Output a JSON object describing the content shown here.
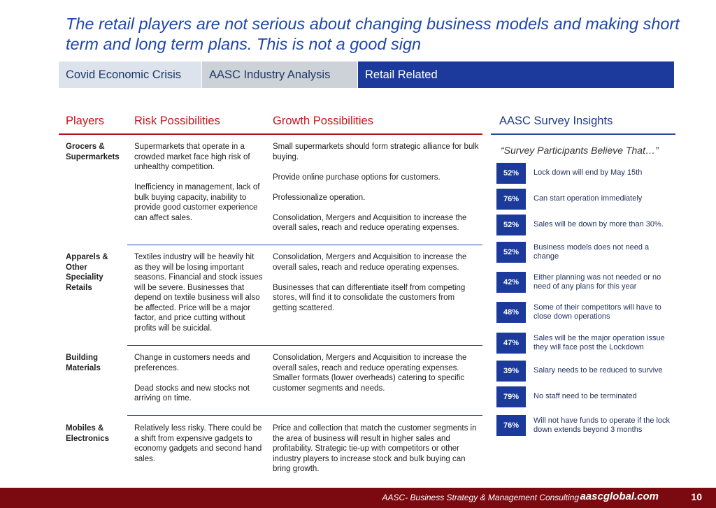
{
  "title": "The retail players are not serious about changing business models and making short term and long term plans. This is not a good sign",
  "tabs": [
    "Covid Economic Crisis",
    "AASC Industry Analysis",
    "Retail Related"
  ],
  "columns": {
    "players": "Players",
    "risk": "Risk Possibilities",
    "growth": "Growth Possibilities"
  },
  "rows": [
    {
      "player": "Grocers & Supermarkets",
      "risk": [
        "Supermarkets that operate in a crowded market face high risk of unhealthy competition.",
        "Inefficiency in management, lack of bulk buying capacity, inability to provide good customer experience can affect sales."
      ],
      "growth": [
        "Small supermarkets should form strategic alliance for bulk buying.",
        "Provide online purchase options for customers.",
        "Professionalize operation.",
        "Consolidation, Mergers and Acquisition to increase the overall sales, reach and reduce operating expenses."
      ]
    },
    {
      "player": "Apparels & Other Speciality Retails",
      "risk": [
        "Textiles industry will be heavily hit as they will be losing important seasons. Financial and stock issues will be severe. Businesses that depend on textile business will also be affected. Price will be a major factor, and price cutting without profits will be suicidal."
      ],
      "growth": [
        "Consolidation, Mergers and Acquisition to increase the overall sales, reach and reduce operating expenses.",
        "Businesses that can differentiate itself from competing stores, will find it to consolidate the customers from getting scattered."
      ]
    },
    {
      "player": "Building Materials",
      "risk": [
        "Change in customers needs and preferences.",
        "Dead stocks and new stocks not arriving on time."
      ],
      "growth": [
        "Consolidation, Mergers and Acquisition to increase the overall sales, reach and reduce operating expenses. Smaller formats (lower overheads) catering to specific customer segments and needs."
      ]
    },
    {
      "player": "Mobiles & Electronics",
      "risk": [
        "Relatively less risky. There could be a shift from expensive gadgets to economy gadgets and second hand sales."
      ],
      "growth": [
        "Price and collection that match the customer segments in the area of business will result in higher sales and profitability. Strategic tie-up with competitors or other industry players to increase stock and bulk buying can bring growth."
      ]
    }
  ],
  "survey": {
    "heading": "AASC Survey Insights",
    "subheading": "“Survey Participants Believe That…”",
    "items": [
      {
        "pct": "52%",
        "text": "Lock down will end by May 15th"
      },
      {
        "pct": "76%",
        "text": "Can start operation immediately"
      },
      {
        "pct": "52%",
        "text": "Sales will be down by more than 30%."
      },
      {
        "pct": "52%",
        "text": "Business models does not need a change"
      },
      {
        "pct": "42%",
        "text": "Either planning was not needed or no need of any plans for this year"
      },
      {
        "pct": "48%",
        "text": "Some of their competitors will have to close down operations"
      },
      {
        "pct": "47%",
        "text": "Sales will be  the major operation issue they will face post the Lockdown"
      },
      {
        "pct": "39%",
        "text": "Salary needs to be reduced  to survive"
      },
      {
        "pct": "79%",
        "text": "No staff need to be terminated"
      },
      {
        "pct": "76%",
        "text": "Will not have funds to operate if the lock down extends beyond 3 months"
      }
    ]
  },
  "footer": {
    "tagline": "AASC- Business Strategy & Management Consulting",
    "site": "aascglobal.com",
    "page": "10"
  },
  "colors": {
    "title": "#1f47a8",
    "accent_red": "#c4161c",
    "navy": "#1b3a9c",
    "footer": "#7a0a10"
  }
}
